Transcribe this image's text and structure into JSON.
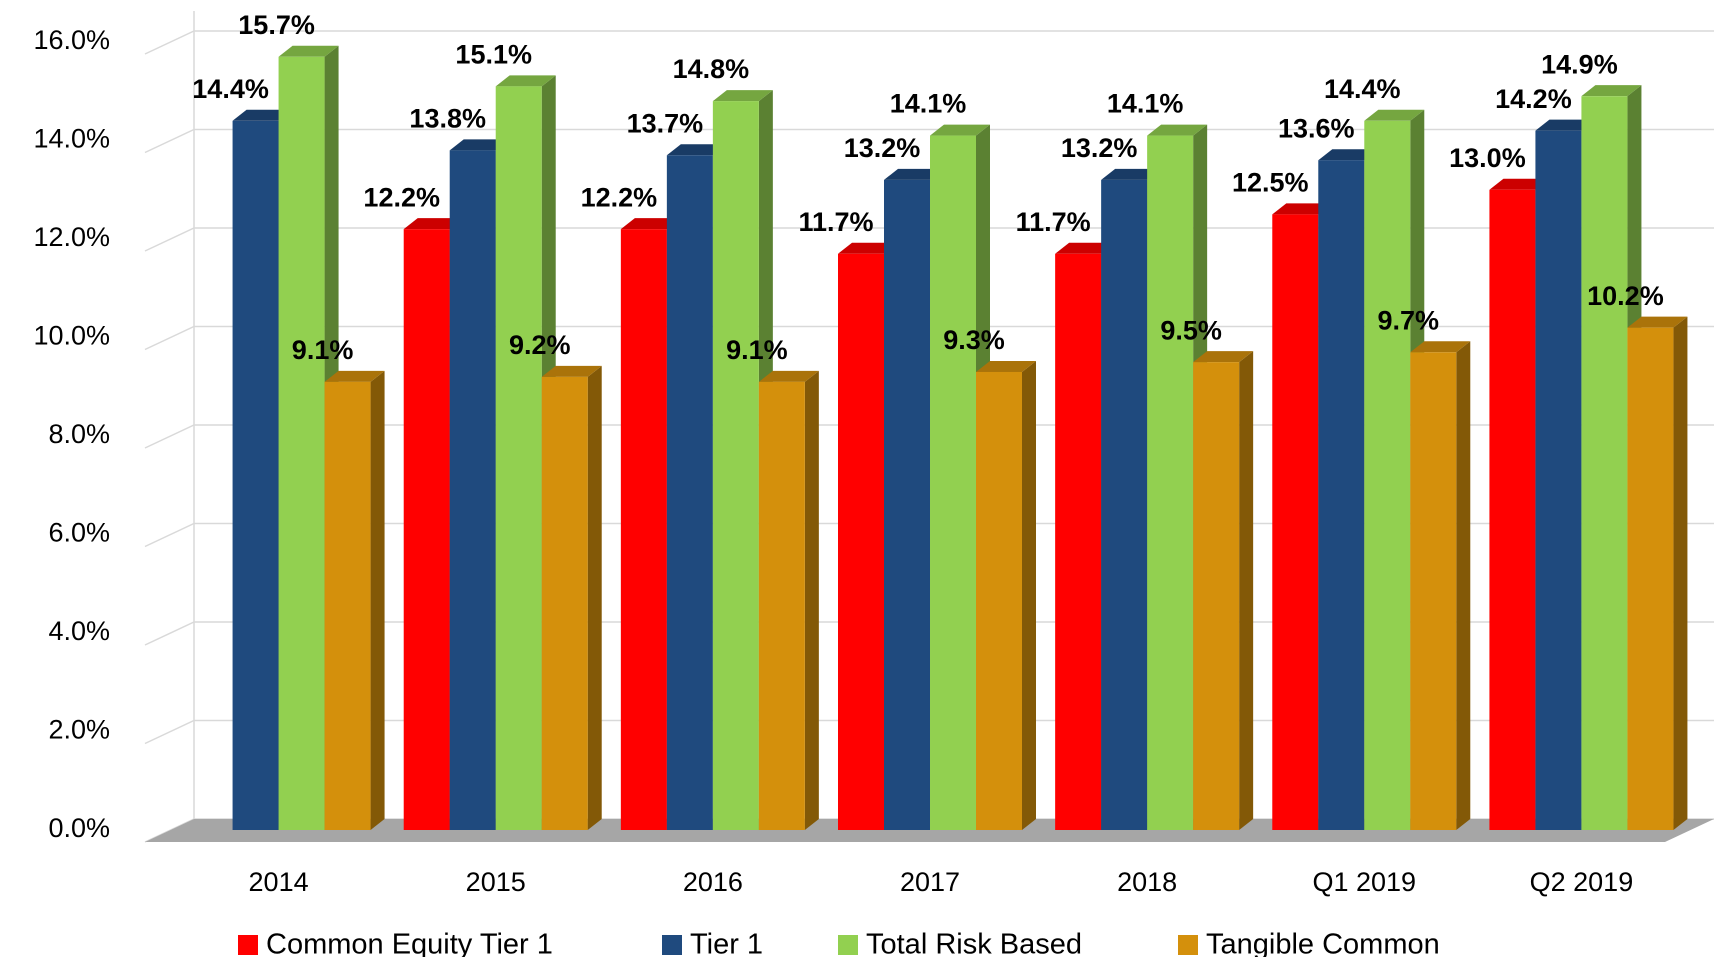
{
  "chart_data": {
    "type": "bar3d",
    "categories": [
      "2014",
      "2015",
      "2016",
      "2017",
      "2018",
      "Q1 2019",
      "Q2 2019"
    ],
    "series": [
      {
        "name": "Common Equity Tier 1",
        "color": "#ff0000",
        "values": [
          null,
          12.2,
          12.2,
          11.7,
          11.7,
          12.5,
          13.0
        ],
        "value_labels": [
          null,
          "12.2%",
          "12.2%",
          "11.7%",
          "11.7%",
          "12.5%",
          "13.0%"
        ]
      },
      {
        "name": "Tier 1",
        "color": "#1f4a7e",
        "values": [
          14.4,
          13.8,
          13.7,
          13.2,
          13.2,
          13.6,
          14.2
        ],
        "value_labels": [
          "14.4%",
          "13.8%",
          "13.7%",
          "13.2%",
          "13.2%",
          "13.6%",
          "14.2%"
        ]
      },
      {
        "name": "Total Risk Based",
        "color": "#92d050",
        "values": [
          15.7,
          15.1,
          14.8,
          14.1,
          14.1,
          14.4,
          14.9
        ],
        "value_labels": [
          "15.7%",
          "15.1%",
          "14.8%",
          "14.1%",
          "14.1%",
          "14.4%",
          "14.9%"
        ]
      },
      {
        "name": "Tangible Common",
        "color": "#d4900c",
        "values": [
          9.1,
          9.2,
          9.1,
          9.3,
          9.5,
          9.7,
          10.2
        ],
        "value_labels": [
          "9.1%",
          "9.2%",
          "9.1%",
          "9.3%",
          "9.5%",
          "9.7%",
          "10.2%"
        ]
      }
    ],
    "ylim": [
      0,
      16
    ],
    "yticks": [
      {
        "value": 0,
        "label": "0.0%"
      },
      {
        "value": 2,
        "label": "2.0%"
      },
      {
        "value": 4,
        "label": "4.0%"
      },
      {
        "value": 6,
        "label": "6.0%"
      },
      {
        "value": 8,
        "label": "8.0%"
      },
      {
        "value": 10,
        "label": "10.0%"
      },
      {
        "value": 12,
        "label": "12.0%"
      },
      {
        "value": 14,
        "label": "14.0%"
      },
      {
        "value": 16,
        "label": "16.0%"
      }
    ],
    "grid": true,
    "legend": "bottom"
  }
}
